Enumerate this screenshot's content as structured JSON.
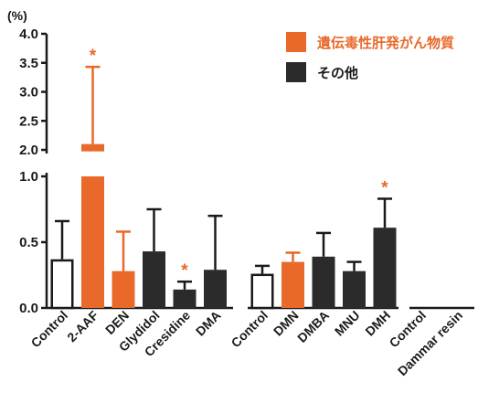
{
  "chart_data": {
    "type": "bar",
    "title": "",
    "xlabel": "",
    "ylabel": "",
    "unit_label": "(%)",
    "ylim": [
      0,
      4.0
    ],
    "axis_break": [
      1.0,
      2.0
    ],
    "yticks_lower": [
      "0.0",
      "0.5",
      "1.0"
    ],
    "yticks_upper": [
      "2.0",
      "2.5",
      "3.0",
      "3.5",
      "4.0"
    ],
    "legend": {
      "placement": "top-right",
      "items": [
        {
          "label": "遺伝毒性肝発がん物質",
          "color": "#e8692a"
        },
        {
          "label": "その他",
          "color": "#2b2b2b"
        }
      ]
    },
    "groups": [
      {
        "bars": [
          {
            "category": "Control",
            "value": 0.37,
            "error": 0.29,
            "style": "open",
            "significant": false
          },
          {
            "category": "2-AAF",
            "value": 2.1,
            "error": 1.33,
            "style": "orange",
            "significant": true
          },
          {
            "category": "DEN",
            "value": 0.28,
            "error": 0.3,
            "style": "orange",
            "significant": false
          },
          {
            "category": "Glydidol",
            "value": 0.43,
            "error": 0.32,
            "style": "dark",
            "significant": false
          },
          {
            "category": "Cresidine",
            "value": 0.14,
            "error": 0.06,
            "style": "dark",
            "significant": true
          },
          {
            "category": "DMA",
            "value": 0.29,
            "error": 0.41,
            "style": "dark",
            "significant": false
          }
        ]
      },
      {
        "bars": [
          {
            "category": "Control",
            "value": 0.26,
            "error": 0.06,
            "style": "open",
            "significant": false
          },
          {
            "category": "DMN",
            "value": 0.35,
            "error": 0.07,
            "style": "orange",
            "significant": false
          },
          {
            "category": "DMBA",
            "value": 0.39,
            "error": 0.18,
            "style": "dark",
            "significant": false
          },
          {
            "category": "MNU",
            "value": 0.28,
            "error": 0.07,
            "style": "dark",
            "significant": false
          },
          {
            "category": "DMH",
            "value": 0.61,
            "error": 0.22,
            "style": "dark",
            "significant": true
          }
        ]
      },
      {
        "bars": [
          {
            "category": "Control",
            "value": 0,
            "error": 0,
            "style": "open",
            "significant": false
          },
          {
            "category": "Dammar resin",
            "value": 0,
            "error": 0,
            "style": "dark",
            "significant": false
          }
        ]
      }
    ],
    "colors": {
      "orange": "#e8692a",
      "dark": "#2b2b2b",
      "open": "#ffffff",
      "axis": "#1a1a1a"
    },
    "significance_marker": "*"
  }
}
